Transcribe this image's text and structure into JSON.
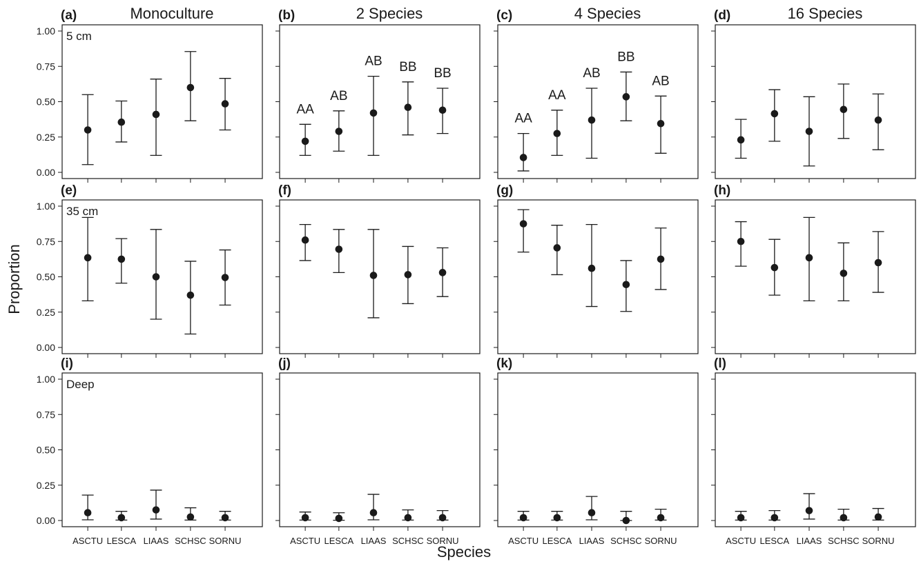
{
  "chart_data": {
    "type": "scatter",
    "ylabel": "Proportion",
    "xlabel": "Species",
    "categories": [
      "ASCTU",
      "LESCA",
      "LIAAS",
      "SCHSC",
      "SORNU"
    ],
    "yticks": [
      "0.00",
      "0.25",
      "0.50",
      "0.75",
      "1.00"
    ],
    "ylim": [
      0,
      1
    ],
    "columns": [
      "Monoculture",
      "2 Species",
      "4 Species",
      "16 Species"
    ],
    "rows": [
      "5 cm",
      "35 cm",
      "Deep"
    ],
    "panels": [
      {
        "label": "(a)",
        "mean": [
          0.3,
          0.355,
          0.41,
          0.6,
          0.485
        ],
        "lower": [
          0.055,
          0.215,
          0.12,
          0.365,
          0.3
        ],
        "upper": [
          0.55,
          0.505,
          0.66,
          0.855,
          0.665
        ],
        "sig": []
      },
      {
        "label": "(b)",
        "mean": [
          0.22,
          0.29,
          0.42,
          0.46,
          0.44
        ],
        "lower": [
          0.12,
          0.15,
          0.12,
          0.265,
          0.275
        ],
        "upper": [
          0.34,
          0.435,
          0.68,
          0.64,
          0.595
        ],
        "sig": [
          "AA",
          "AB",
          "AB",
          "BB",
          "BB"
        ]
      },
      {
        "label": "(c)",
        "mean": [
          0.105,
          0.275,
          0.37,
          0.535,
          0.345
        ],
        "lower": [
          0.01,
          0.12,
          0.1,
          0.365,
          0.135
        ],
        "upper": [
          0.275,
          0.44,
          0.595,
          0.71,
          0.54
        ],
        "sig": [
          "AA",
          "AA",
          "AB",
          "BB",
          "AB"
        ]
      },
      {
        "label": "(d)",
        "mean": [
          0.23,
          0.415,
          0.29,
          0.445,
          0.37
        ],
        "lower": [
          0.1,
          0.22,
          0.045,
          0.24,
          0.16
        ],
        "upper": [
          0.375,
          0.585,
          0.535,
          0.625,
          0.555
        ],
        "sig": []
      },
      {
        "label": "(e)",
        "mean": [
          0.635,
          0.625,
          0.5,
          0.37,
          0.495
        ],
        "lower": [
          0.33,
          0.455,
          0.2,
          0.095,
          0.3
        ],
        "upper": [
          0.92,
          0.77,
          0.835,
          0.61,
          0.69
        ],
        "sig": []
      },
      {
        "label": "(f)",
        "mean": [
          0.76,
          0.695,
          0.51,
          0.515,
          0.53
        ],
        "lower": [
          0.615,
          0.53,
          0.21,
          0.31,
          0.36
        ],
        "upper": [
          0.87,
          0.835,
          0.835,
          0.715,
          0.705
        ],
        "sig": []
      },
      {
        "label": "(g)",
        "mean": [
          0.875,
          0.705,
          0.56,
          0.445,
          0.625
        ],
        "lower": [
          0.675,
          0.515,
          0.29,
          0.255,
          0.41
        ],
        "upper": [
          0.975,
          0.865,
          0.87,
          0.615,
          0.845
        ],
        "sig": []
      },
      {
        "label": "(h)",
        "mean": [
          0.75,
          0.565,
          0.635,
          0.525,
          0.6
        ],
        "lower": [
          0.575,
          0.37,
          0.33,
          0.33,
          0.39
        ],
        "upper": [
          0.89,
          0.765,
          0.92,
          0.74,
          0.82
        ],
        "sig": []
      },
      {
        "label": "(i)",
        "mean": [
          0.055,
          0.02,
          0.075,
          0.025,
          0.02
        ],
        "lower": [
          0.005,
          0.003,
          0.01,
          0.003,
          0.003
        ],
        "upper": [
          0.18,
          0.065,
          0.215,
          0.09,
          0.065
        ],
        "sig": []
      },
      {
        "label": "(j)",
        "mean": [
          0.02,
          0.015,
          0.055,
          0.02,
          0.02
        ],
        "lower": [
          0.003,
          0.002,
          0.005,
          0.003,
          0.003
        ],
        "upper": [
          0.06,
          0.055,
          0.185,
          0.075,
          0.07
        ],
        "sig": []
      },
      {
        "label": "(k)",
        "mean": [
          0.02,
          0.02,
          0.055,
          0.0,
          0.02
        ],
        "lower": [
          0.003,
          0.003,
          0.005,
          0.0,
          0.003
        ],
        "upper": [
          0.065,
          0.065,
          0.17,
          0.065,
          0.08
        ],
        "sig": []
      },
      {
        "label": "(l)",
        "mean": [
          0.02,
          0.02,
          0.07,
          0.02,
          0.025
        ],
        "lower": [
          0.003,
          0.003,
          0.01,
          0.003,
          0.003
        ],
        "upper": [
          0.065,
          0.07,
          0.19,
          0.08,
          0.085
        ],
        "sig": []
      }
    ]
  }
}
